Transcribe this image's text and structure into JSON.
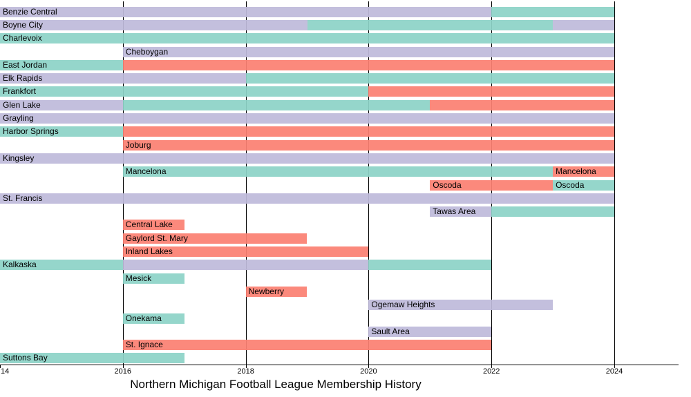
{
  "title": "Northern Michigan Football League Membership History",
  "palette": {
    "teal": "#8dd3c7",
    "purple": "#bebada",
    "red": "#fb8072"
  },
  "chart_data": {
    "type": "bar",
    "variant": "gantt-timeline",
    "title": "Northern Michigan Football League Membership History",
    "xlabel": "",
    "ylabel": "",
    "grid": "vertical-on",
    "x_axis": {
      "min": 2014,
      "max": 2024,
      "ticks": [
        {
          "year": 2014,
          "label": "14"
        },
        {
          "year": 2016,
          "label": "2016"
        },
        {
          "year": 2018,
          "label": "2018"
        },
        {
          "year": 2020,
          "label": "2020"
        },
        {
          "year": 2022,
          "label": "2022"
        },
        {
          "year": 2024,
          "label": "2024"
        }
      ],
      "gridline_years": [
        2016,
        2018,
        2020,
        2022,
        2024
      ]
    },
    "rows": [
      {
        "name": "Benzie Central",
        "segments": [
          {
            "start": 2014,
            "end": 2022,
            "color": "purple"
          },
          {
            "start": 2022,
            "end": 2024,
            "color": "teal"
          }
        ],
        "labels": [
          {
            "text": "Benzie Central",
            "year": 2014
          }
        ]
      },
      {
        "name": "Boyne City",
        "segments": [
          {
            "start": 2014,
            "end": 2019,
            "color": "purple"
          },
          {
            "start": 2019,
            "end": 2023,
            "color": "teal"
          },
          {
            "start": 2023,
            "end": 2024,
            "color": "purple"
          }
        ],
        "labels": [
          {
            "text": "Boyne City",
            "year": 2014
          }
        ]
      },
      {
        "name": "Charlevoix",
        "segments": [
          {
            "start": 2014,
            "end": 2024,
            "color": "teal"
          }
        ],
        "labels": [
          {
            "text": "Charlevoix",
            "year": 2014
          }
        ]
      },
      {
        "name": "Cheboygan",
        "segments": [
          {
            "start": 2016,
            "end": 2024,
            "color": "purple"
          }
        ],
        "labels": [
          {
            "text": "Cheboygan",
            "year": 2016
          }
        ]
      },
      {
        "name": "East Jordan",
        "segments": [
          {
            "start": 2014,
            "end": 2016,
            "color": "teal"
          },
          {
            "start": 2016,
            "end": 2024,
            "color": "red"
          }
        ],
        "labels": [
          {
            "text": "East Jordan",
            "year": 2014
          }
        ]
      },
      {
        "name": "Elk Rapids",
        "segments": [
          {
            "start": 2014,
            "end": 2018,
            "color": "purple"
          },
          {
            "start": 2018,
            "end": 2024,
            "color": "teal"
          }
        ],
        "labels": [
          {
            "text": "Elk Rapids",
            "year": 2014
          }
        ]
      },
      {
        "name": "Frankfort",
        "segments": [
          {
            "start": 2014,
            "end": 2020,
            "color": "teal"
          },
          {
            "start": 2020,
            "end": 2024,
            "color": "red"
          }
        ],
        "labels": [
          {
            "text": "Frankfort",
            "year": 2014
          }
        ]
      },
      {
        "name": "Glen Lake",
        "segments": [
          {
            "start": 2014,
            "end": 2016,
            "color": "purple"
          },
          {
            "start": 2016,
            "end": 2021,
            "color": "teal"
          },
          {
            "start": 2021,
            "end": 2024,
            "color": "red"
          }
        ],
        "labels": [
          {
            "text": "Glen Lake",
            "year": 2014
          }
        ]
      },
      {
        "name": "Grayling",
        "segments": [
          {
            "start": 2014,
            "end": 2024,
            "color": "purple"
          }
        ],
        "labels": [
          {
            "text": "Grayling",
            "year": 2014
          }
        ]
      },
      {
        "name": "Harbor Springs",
        "segments": [
          {
            "start": 2014,
            "end": 2016,
            "color": "teal"
          },
          {
            "start": 2016,
            "end": 2024,
            "color": "red"
          }
        ],
        "labels": [
          {
            "text": "Harbor Springs",
            "year": 2014
          }
        ]
      },
      {
        "name": "Joburg",
        "segments": [
          {
            "start": 2016,
            "end": 2024,
            "color": "red"
          }
        ],
        "labels": [
          {
            "text": "Joburg",
            "year": 2016
          }
        ]
      },
      {
        "name": "Kingsley",
        "segments": [
          {
            "start": 2014,
            "end": 2024,
            "color": "purple"
          }
        ],
        "labels": [
          {
            "text": "Kingsley",
            "year": 2014
          }
        ]
      },
      {
        "name": "Mancelona",
        "segments": [
          {
            "start": 2016,
            "end": 2023,
            "color": "teal"
          },
          {
            "start": 2023,
            "end": 2024,
            "color": "red"
          }
        ],
        "labels": [
          {
            "text": "Mancelona",
            "year": 2016
          },
          {
            "text": "Mancelona",
            "year": 2023
          }
        ]
      },
      {
        "name": "Oscoda",
        "segments": [
          {
            "start": 2021,
            "end": 2023,
            "color": "red"
          },
          {
            "start": 2023,
            "end": 2024,
            "color": "teal"
          }
        ],
        "labels": [
          {
            "text": "Oscoda",
            "year": 2021
          },
          {
            "text": "Oscoda",
            "year": 2023
          }
        ]
      },
      {
        "name": "St. Francis",
        "segments": [
          {
            "start": 2014,
            "end": 2024,
            "color": "purple"
          }
        ],
        "labels": [
          {
            "text": "St. Francis",
            "year": 2014
          }
        ]
      },
      {
        "name": "Tawas Area",
        "segments": [
          {
            "start": 2021,
            "end": 2022,
            "color": "purple"
          },
          {
            "start": 2022,
            "end": 2024,
            "color": "teal"
          }
        ],
        "labels": [
          {
            "text": "Tawas Area",
            "year": 2021
          }
        ]
      },
      {
        "name": "Central Lake",
        "segments": [
          {
            "start": 2016,
            "end": 2017,
            "color": "red"
          }
        ],
        "labels": [
          {
            "text": "Central Lake",
            "year": 2016
          }
        ]
      },
      {
        "name": "Gaylord St. Mary",
        "segments": [
          {
            "start": 2016,
            "end": 2019,
            "color": "red"
          }
        ],
        "labels": [
          {
            "text": "Gaylord St. Mary",
            "year": 2016
          }
        ]
      },
      {
        "name": "Inland Lakes",
        "segments": [
          {
            "start": 2016,
            "end": 2020,
            "color": "red"
          }
        ],
        "labels": [
          {
            "text": "Inland Lakes",
            "year": 2016
          }
        ]
      },
      {
        "name": "Kalkaska",
        "segments": [
          {
            "start": 2014,
            "end": 2016,
            "color": "teal"
          },
          {
            "start": 2016,
            "end": 2020,
            "color": "purple"
          },
          {
            "start": 2020,
            "end": 2022,
            "color": "teal"
          }
        ],
        "labels": [
          {
            "text": "Kalkaska",
            "year": 2014
          }
        ]
      },
      {
        "name": "Mesick",
        "segments": [
          {
            "start": 2016,
            "end": 2017,
            "color": "teal"
          }
        ],
        "labels": [
          {
            "text": "Mesick",
            "year": 2016
          }
        ]
      },
      {
        "name": "Newberry",
        "segments": [
          {
            "start": 2018,
            "end": 2019,
            "color": "red"
          }
        ],
        "labels": [
          {
            "text": "Newberry",
            "year": 2018
          }
        ]
      },
      {
        "name": "Ogemaw Heights",
        "segments": [
          {
            "start": 2020,
            "end": 2023,
            "color": "purple"
          }
        ],
        "labels": [
          {
            "text": "Ogemaw Heights",
            "year": 2020
          }
        ]
      },
      {
        "name": "Onekama",
        "segments": [
          {
            "start": 2016,
            "end": 2017,
            "color": "teal"
          }
        ],
        "labels": [
          {
            "text": "Onekama",
            "year": 2016
          }
        ]
      },
      {
        "name": "Sault Area",
        "segments": [
          {
            "start": 2020,
            "end": 2022,
            "color": "purple"
          }
        ],
        "labels": [
          {
            "text": "Sault Area",
            "year": 2020
          }
        ]
      },
      {
        "name": "St. Ignace",
        "segments": [
          {
            "start": 2016,
            "end": 2022,
            "color": "red"
          }
        ],
        "labels": [
          {
            "text": "St. Ignace",
            "year": 2016
          }
        ]
      },
      {
        "name": "Suttons Bay",
        "segments": [
          {
            "start": 2014,
            "end": 2017,
            "color": "teal"
          }
        ],
        "labels": [
          {
            "text": "Suttons Bay",
            "year": 2014
          }
        ]
      }
    ]
  }
}
